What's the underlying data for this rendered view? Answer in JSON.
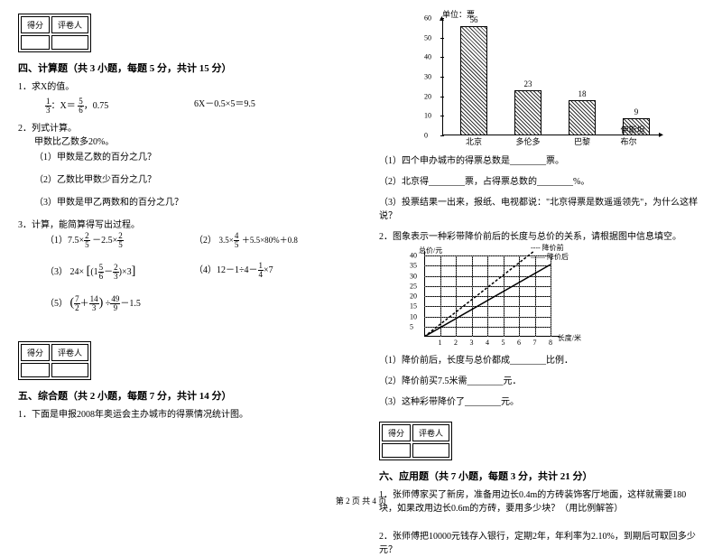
{
  "score_header": {
    "c1": "得分",
    "c2": "评卷人"
  },
  "section4": {
    "title": "四、计算题（共 3 小题，每题 5 分，共计 15 分）",
    "q1": {
      "stem": "1．求X的值。",
      "eq1a": "X＝",
      "eq1a_rhs": "，0.75",
      "eq1b": "6X－0.5×5＝9.5"
    },
    "q2": {
      "stem": "2．列式计算。",
      "line1": "甲数比乙数多20%。",
      "p1": "（1）甲数是乙数的百分之几？",
      "p2": "（2）乙数比甲数少百分之几？",
      "p3": "（3）甲数是甲乙两数和的百分之几？"
    },
    "q3": {
      "stem": "3．计算，能简算得写出过程。",
      "p1_pre": "（1）7.5×",
      "p1_mid": "－2.5×",
      "p2_pre": "（2）",
      "p2_a": "3.5×",
      "p2_b": "＋5.5×80%＋0.8",
      "p3_pre": "（3）",
      "p3_a": "24×",
      "p4_pre": "（4）12－1÷4－",
      "p4_suf": "×7",
      "p5_pre": "（5）",
      "p5_mid": "÷",
      "p5_suf": "－1.5"
    }
  },
  "section5": {
    "title": "五、综合题（共 2 小题，每题 7 分，共计 14 分）",
    "q1": "1．下面是申报2008年奥运会主办城市的得票情况统计图。"
  },
  "chart1": {
    "unit": "单位：票",
    "ymax": 60,
    "ystep": 10,
    "categories": [
      "北京",
      "多伦多",
      "巴黎",
      "伊斯坦布尔"
    ],
    "values": [
      56,
      23,
      18,
      9
    ],
    "bar_color": "#333333",
    "bg": "#ffffff"
  },
  "section5_after": {
    "p1": "（1）四个申办城市的得票总数是________票。",
    "p2": "（2）北京得________票，占得票总数的________%。",
    "p3": "（3）投票结果一出来，报纸、电视都说：\"北京得票是数遥遥领先\"，为什么这样说？",
    "q2": "2．图象表示一种彩带降价前后的长度与总价的关系，请根据图中信息填空。"
  },
  "chart2": {
    "ylabel": "总价/元",
    "xlabel": "长度/米",
    "legend1": "---- 降价前",
    "legend2": "—— 降价后",
    "xticks": [
      "1",
      "2",
      "3",
      "4",
      "5",
      "6",
      "7",
      "8"
    ],
    "yticks": [
      "5",
      "10",
      "15",
      "20",
      "25",
      "30",
      "35",
      "40"
    ],
    "solid_color": "#000000",
    "dash_color": "#000000"
  },
  "section5_q2sub": {
    "p1": "（1）降价前后，长度与总价都成________比例．",
    "p2": "（2）降价前买7.5米需________元．",
    "p3": "（3）这种彩带降价了________元。"
  },
  "section6": {
    "title": "六、应用题（共 7 小题，每题 3 分，共计 21 分）",
    "q1": "1．张师傅家买了新房，准备用边长0.4m的方砖装饰客厅地面，这样就需要180块，如果改用边长0.6m的方砖，要用多少块？（用比例解答）",
    "q2": "2．张师傅把10000元钱存入银行，定期2年，年利率为2.10%，到期后可取回多少元？"
  },
  "footer": "第 2 页 共 4 页"
}
